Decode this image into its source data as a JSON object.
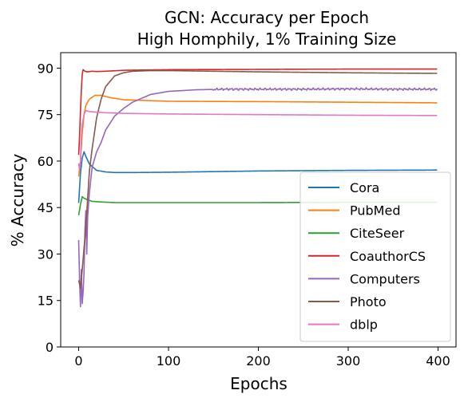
{
  "chart_data": {
    "type": "line",
    "title": "GCN: Accuracy per Epoch",
    "subtitle": "High Homphily, 1% Training Size",
    "xlabel": "Epochs",
    "ylabel": "% Accuracy",
    "xlim": [
      -20,
      420
    ],
    "ylim": [
      0,
      95
    ],
    "xticks": [
      0,
      100,
      200,
      300,
      400
    ],
    "yticks": [
      0,
      15,
      30,
      45,
      60,
      75,
      90
    ],
    "grid": false,
    "legend_position": "lower-right",
    "series": [
      {
        "name": "Cora",
        "color": "#1f77b4",
        "x": [
          0,
          2,
          4,
          6,
          8,
          12,
          20,
          30,
          40,
          60,
          100,
          150,
          200,
          300,
          400
        ],
        "y": [
          46.5,
          56,
          61,
          63,
          61.5,
          59,
          57,
          56.5,
          56.3,
          56.3,
          56.4,
          56.6,
          56.8,
          57,
          57.1
        ]
      },
      {
        "name": "PubMed",
        "color": "#ff7f0e",
        "x": [
          0,
          2,
          4,
          6,
          8,
          12,
          18,
          25,
          35,
          50,
          100,
          200,
          300,
          400
        ],
        "y": [
          55,
          60,
          69,
          75,
          78,
          80,
          81.2,
          81.2,
          80.5,
          79.8,
          79.3,
          79.2,
          79,
          78.8
        ]
      },
      {
        "name": "CiteSeer",
        "color": "#2ca02c",
        "x": [
          0,
          2,
          4,
          6,
          10,
          15,
          25,
          40,
          100,
          200,
          300,
          400
        ],
        "y": [
          42.5,
          46,
          48.5,
          48,
          47.5,
          47,
          46.8,
          46.6,
          46.6,
          46.6,
          46.7,
          46.7
        ],
        "dy": [
          0,
          0,
          0,
          0,
          0,
          0,
          0,
          0,
          0,
          0,
          0,
          0
        ]
      },
      {
        "name": "CoauthorCS",
        "color": "#d62728",
        "x": [
          0,
          1,
          2,
          3,
          4,
          5,
          7,
          10,
          15,
          20,
          30,
          50,
          100,
          200,
          300,
          400
        ],
        "y": [
          62,
          68,
          76,
          83,
          88,
          89.5,
          89,
          88.8,
          89,
          88.9,
          89,
          89.3,
          89.5,
          89.6,
          89.7,
          89.7
        ]
      },
      {
        "name": "Computers",
        "color": "#9467bd",
        "x": [
          0,
          1,
          2,
          3,
          4,
          5,
          6,
          7,
          8,
          9,
          10,
          12,
          15,
          20,
          25,
          30,
          40,
          50,
          60,
          80,
          100,
          130,
          160,
          200,
          250,
          300,
          350,
          400
        ],
        "y": [
          34.5,
          22,
          13,
          25,
          14,
          18,
          24,
          38,
          44,
          30,
          42,
          50,
          58,
          63,
          66,
          70,
          74.5,
          77,
          79,
          81.5,
          82.5,
          83,
          83.2,
          83.2,
          83.2,
          83.3,
          83.2,
          83.2
        ],
        "noise": 0.4,
        "noise_start": 150
      },
      {
        "name": "Photo",
        "color": "#8c564b",
        "x": [
          0,
          2,
          3,
          4,
          6,
          8,
          10,
          12,
          15,
          20,
          25,
          30,
          40,
          50,
          60,
          80,
          100,
          150,
          200,
          300,
          400
        ],
        "y": [
          21.5,
          19,
          22,
          25,
          32,
          38,
          48,
          57,
          64,
          74,
          80,
          84,
          87.5,
          88.5,
          89,
          89.2,
          89.2,
          89,
          88.8,
          88.5,
          88.3
        ]
      },
      {
        "name": "dblp",
        "color": "#e377c2",
        "x": [
          0,
          1,
          2,
          3,
          4,
          6,
          8,
          10,
          15,
          20,
          30,
          50,
          100,
          200,
          300,
          400
        ],
        "y": [
          59.3,
          57,
          60,
          68,
          72,
          75,
          76.3,
          76.1,
          75.9,
          75.8,
          75.6,
          75.4,
          75.2,
          75,
          74.8,
          74.7
        ]
      }
    ]
  }
}
